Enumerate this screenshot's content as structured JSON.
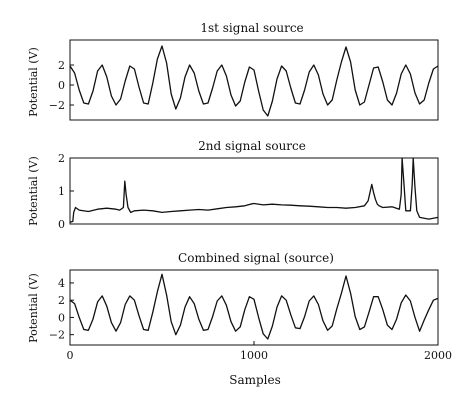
{
  "chart_data": [
    {
      "type": "line",
      "title": "1st signal source",
      "ylabel": "Potential (V)",
      "xlim": [
        0,
        2000
      ],
      "ylim": [
        -3.5,
        4.5
      ],
      "yticks": [
        "2",
        "0",
        "−2"
      ],
      "ytick_values": [
        2,
        0,
        -2
      ],
      "grid": false,
      "series": [
        {
          "x": [
            0,
            25,
            50,
            75,
            100,
            125,
            150,
            175,
            200,
            225,
            250,
            275,
            300,
            325,
            350,
            375,
            400,
            425,
            450,
            475,
            500,
            525,
            550,
            575,
            600,
            625,
            650,
            675,
            700,
            725,
            750,
            775,
            800,
            825,
            850,
            875,
            900,
            925,
            950,
            975,
            1000,
            1025,
            1050,
            1075,
            1100,
            1125,
            1150,
            1175,
            1200,
            1225,
            1250,
            1275,
            1300,
            1325,
            1350,
            1375,
            1400,
            1425,
            1450,
            1475,
            1500,
            1525,
            1550,
            1575,
            1600,
            1625,
            1650,
            1675,
            1700,
            1725,
            1750,
            1775,
            1800,
            1825,
            1850,
            1875,
            1900,
            1925,
            1950,
            1975,
            2000
          ],
          "y": [
            1.9,
            1.2,
            -0.5,
            -1.8,
            -1.9,
            -0.6,
            1.4,
            2.0,
            0.8,
            -1.1,
            -2.0,
            -1.4,
            0.4,
            1.9,
            1.6,
            -0.2,
            -1.8,
            -1.9,
            0.2,
            2.6,
            3.9,
            2.2,
            -0.9,
            -2.4,
            -1.3,
            0.8,
            2.0,
            1.2,
            -0.6,
            -1.9,
            -1.8,
            -0.3,
            1.4,
            2.0,
            0.9,
            -1.0,
            -2.1,
            -1.6,
            0.3,
            1.8,
            1.5,
            -0.6,
            -2.5,
            -3.1,
            -1.6,
            0.6,
            1.9,
            1.4,
            -0.3,
            -1.8,
            -1.9,
            -0.5,
            1.3,
            2.0,
            1.0,
            -0.9,
            -2.0,
            -1.5,
            0.5,
            2.3,
            3.8,
            2.3,
            -0.5,
            -2.0,
            -1.7,
            0.0,
            1.7,
            1.8,
            0.3,
            -1.5,
            -2.0,
            -0.8,
            1.1,
            2.0,
            1.1,
            -0.8,
            -1.9,
            -1.5,
            0.2,
            1.6,
            1.9
          ]
        }
      ]
    },
    {
      "type": "line",
      "title": "2nd signal source",
      "ylabel": "Potential (V)",
      "xlim": [
        0,
        2000
      ],
      "ylim": [
        0,
        2
      ],
      "yticks": [
        "2",
        "1",
        "0"
      ],
      "ytick_values": [
        2,
        1,
        0
      ],
      "grid": false,
      "series": [
        {
          "x": [
            0,
            15,
            20,
            30,
            50,
            100,
            150,
            200,
            250,
            270,
            290,
            298,
            305,
            315,
            330,
            350,
            400,
            450,
            500,
            550,
            600,
            650,
            700,
            750,
            800,
            850,
            900,
            950,
            980,
            1000,
            1050,
            1100,
            1150,
            1200,
            1250,
            1300,
            1350,
            1400,
            1450,
            1500,
            1550,
            1600,
            1620,
            1640,
            1650,
            1660,
            1670,
            1680,
            1700,
            1750,
            1790,
            1800,
            1805,
            1815,
            1825,
            1850,
            1860,
            1865,
            1875,
            1885,
            1900,
            1950,
            2000
          ],
          "y": [
            0.05,
            0.08,
            0.35,
            0.5,
            0.42,
            0.38,
            0.45,
            0.48,
            0.45,
            0.42,
            0.5,
            1.3,
            0.9,
            0.5,
            0.35,
            0.4,
            0.42,
            0.4,
            0.35,
            0.38,
            0.4,
            0.42,
            0.44,
            0.42,
            0.46,
            0.5,
            0.52,
            0.55,
            0.6,
            0.62,
            0.58,
            0.6,
            0.58,
            0.57,
            0.55,
            0.54,
            0.52,
            0.5,
            0.5,
            0.48,
            0.5,
            0.55,
            0.7,
            1.2,
            0.95,
            0.75,
            0.6,
            0.55,
            0.5,
            0.52,
            0.45,
            0.9,
            2.0,
            1.2,
            0.4,
            0.4,
            1.2,
            2.0,
            1.1,
            0.4,
            0.2,
            0.15,
            0.2
          ]
        }
      ]
    },
    {
      "type": "line",
      "title": "Combined signal (source)",
      "ylabel": "Potential (V)",
      "xlabel": "Samples",
      "xlim": [
        0,
        2000
      ],
      "ylim": [
        -3.2,
        5.5
      ],
      "xticks": [
        "0",
        "1000",
        "2000"
      ],
      "xtick_values": [
        0,
        1000,
        2000
      ],
      "yticks": [
        "4",
        "2",
        "0",
        "−2"
      ],
      "ytick_values": [
        4,
        2,
        0,
        -2
      ],
      "grid": false,
      "series": [
        {
          "x": [
            0,
            25,
            50,
            75,
            100,
            125,
            150,
            175,
            200,
            225,
            250,
            275,
            300,
            325,
            350,
            375,
            400,
            425,
            450,
            475,
            500,
            525,
            550,
            575,
            600,
            625,
            650,
            675,
            700,
            725,
            750,
            775,
            800,
            825,
            850,
            875,
            900,
            925,
            950,
            975,
            1000,
            1025,
            1050,
            1075,
            1100,
            1125,
            1150,
            1175,
            1200,
            1225,
            1250,
            1275,
            1300,
            1325,
            1350,
            1375,
            1400,
            1425,
            1450,
            1475,
            1500,
            1525,
            1550,
            1575,
            1600,
            1625,
            1650,
            1675,
            1700,
            1725,
            1750,
            1775,
            1800,
            1825,
            1850,
            1875,
            1900,
            1925,
            1950,
            1975,
            2000
          ],
          "y": [
            2.0,
            1.6,
            0.0,
            -1.4,
            -1.5,
            -0.2,
            1.8,
            2.5,
            1.3,
            -0.6,
            -1.6,
            -0.6,
            1.5,
            2.5,
            2.0,
            0.2,
            -1.4,
            -1.5,
            0.6,
            3.0,
            5.0,
            2.6,
            -0.5,
            -2.0,
            -0.9,
            1.2,
            2.4,
            1.6,
            -0.2,
            -1.5,
            -1.4,
            0.1,
            1.9,
            2.5,
            1.4,
            -0.5,
            -1.6,
            -1.1,
            0.9,
            2.4,
            2.1,
            0.0,
            -1.9,
            -2.5,
            -1.0,
            1.2,
            2.5,
            2.0,
            0.3,
            -1.2,
            -1.3,
            0.1,
            1.9,
            2.5,
            1.5,
            -0.4,
            -1.5,
            -1.0,
            1.0,
            2.8,
            4.8,
            2.8,
            0.1,
            -1.4,
            -1.1,
            0.6,
            2.4,
            2.4,
            0.9,
            -0.9,
            -1.4,
            -0.2,
            1.7,
            2.6,
            1.9,
            0.0,
            -1.6,
            -0.3,
            0.9,
            2.0,
            2.2
          ]
        }
      ]
    }
  ]
}
